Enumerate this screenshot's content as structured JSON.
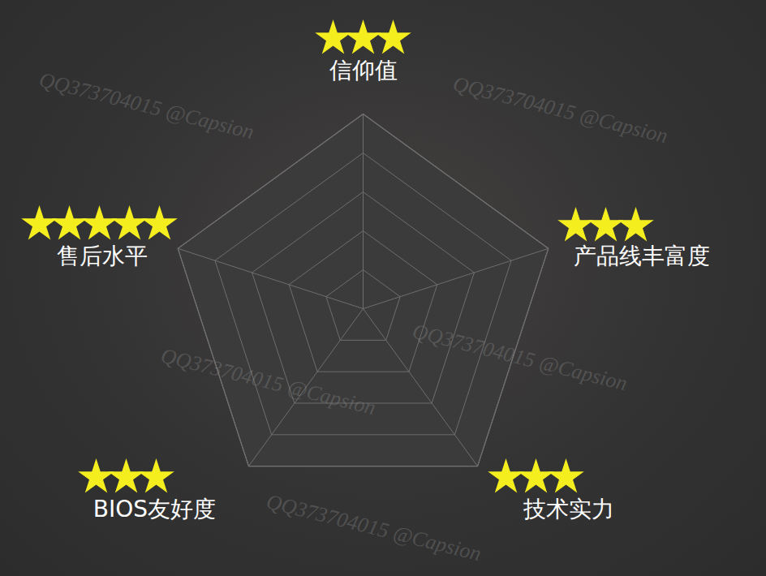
{
  "chart_data": {
    "type": "radar",
    "categories": [
      "信仰值",
      "产品线丰富度",
      "技术实力",
      "BIOS友好度",
      "售后水平"
    ],
    "values": [
      3,
      3,
      3,
      3,
      5
    ],
    "ylim": [
      0,
      5
    ],
    "yticks": [
      1,
      2,
      3,
      4,
      5
    ],
    "grid": true,
    "tick_labels": false,
    "marker": "star",
    "color": "#f5ee1f",
    "annotations": [
      "QQ373704015 @Capsion"
    ]
  }
}
